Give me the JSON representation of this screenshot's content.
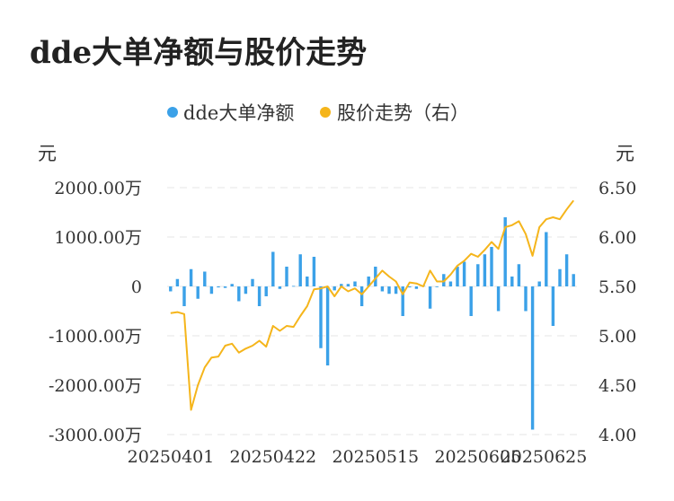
{
  "chart_data": {
    "type": "bar+line",
    "title": "dde大单净额与股价走势",
    "legend": [
      {
        "name": "dde大单净额",
        "color": "#3ba1e8",
        "marker": "dot"
      },
      {
        "name": "股价走势（右）",
        "color": "#f5b51b",
        "marker": "dot"
      }
    ],
    "left_unit": "元",
    "right_unit": "元",
    "left_axis": {
      "min": -3000,
      "max": 2000,
      "ticks": [
        {
          "value": 2000,
          "label": "2000.00万"
        },
        {
          "value": 1000,
          "label": "1000.00万"
        },
        {
          "value": 0,
          "label": "0"
        },
        {
          "value": -1000,
          "label": "-1000.00万"
        },
        {
          "value": -2000,
          "label": "-2000.00万"
        },
        {
          "value": -3000,
          "label": "-3000.00万"
        }
      ]
    },
    "right_axis": {
      "min": 4.0,
      "max": 6.5,
      "ticks": [
        {
          "value": 6.5,
          "label": "6.50"
        },
        {
          "value": 6.0,
          "label": "6.00"
        },
        {
          "value": 5.5,
          "label": "5.50"
        },
        {
          "value": 5.0,
          "label": "5.00"
        },
        {
          "value": 4.5,
          "label": "4.50"
        },
        {
          "value": 4.0,
          "label": "4.00"
        }
      ]
    },
    "x_tick_labels": [
      {
        "index": 0,
        "label": "20250401"
      },
      {
        "index": 15,
        "label": "20250422"
      },
      {
        "index": 30,
        "label": "20250515"
      },
      {
        "index": 45,
        "label": "20250605"
      },
      {
        "index": 60,
        "label": "20250625"
      }
    ],
    "grid": true,
    "series": [
      {
        "name": "dde大单净额",
        "type": "bar",
        "axis": "left",
        "unit": "万元",
        "values": [
          -100,
          150,
          -400,
          350,
          -250,
          300,
          -150,
          -20,
          -30,
          50,
          -300,
          -150,
          150,
          -400,
          -200,
          700,
          -50,
          400,
          10,
          650,
          200,
          600,
          -1250,
          -1600,
          -80,
          50,
          50,
          100,
          -400,
          200,
          400,
          -100,
          -150,
          -150,
          -600,
          -20,
          -50,
          20,
          -450,
          0,
          250,
          100,
          400,
          500,
          -600,
          450,
          650,
          800,
          -500,
          1400,
          200,
          450,
          -500,
          -2900,
          100,
          1100,
          -800,
          350,
          650,
          250
        ]
      },
      {
        "name": "股价走势（右）",
        "type": "line",
        "axis": "right",
        "values": [
          5.23,
          5.24,
          5.22,
          4.25,
          4.5,
          4.68,
          4.78,
          4.79,
          4.9,
          4.92,
          4.83,
          4.87,
          4.9,
          4.95,
          4.89,
          5.1,
          5.05,
          5.1,
          5.09,
          5.2,
          5.3,
          5.47,
          5.48,
          5.5,
          5.4,
          5.5,
          5.45,
          5.48,
          5.42,
          5.5,
          5.58,
          5.66,
          5.6,
          5.55,
          5.42,
          5.54,
          5.53,
          5.5,
          5.66,
          5.55,
          5.55,
          5.62,
          5.71,
          5.76,
          5.83,
          5.8,
          5.87,
          5.95,
          5.88,
          6.1,
          6.12,
          6.16,
          6.03,
          5.81,
          6.1,
          6.18,
          6.2,
          6.18,
          6.28,
          6.37
        ]
      }
    ]
  }
}
